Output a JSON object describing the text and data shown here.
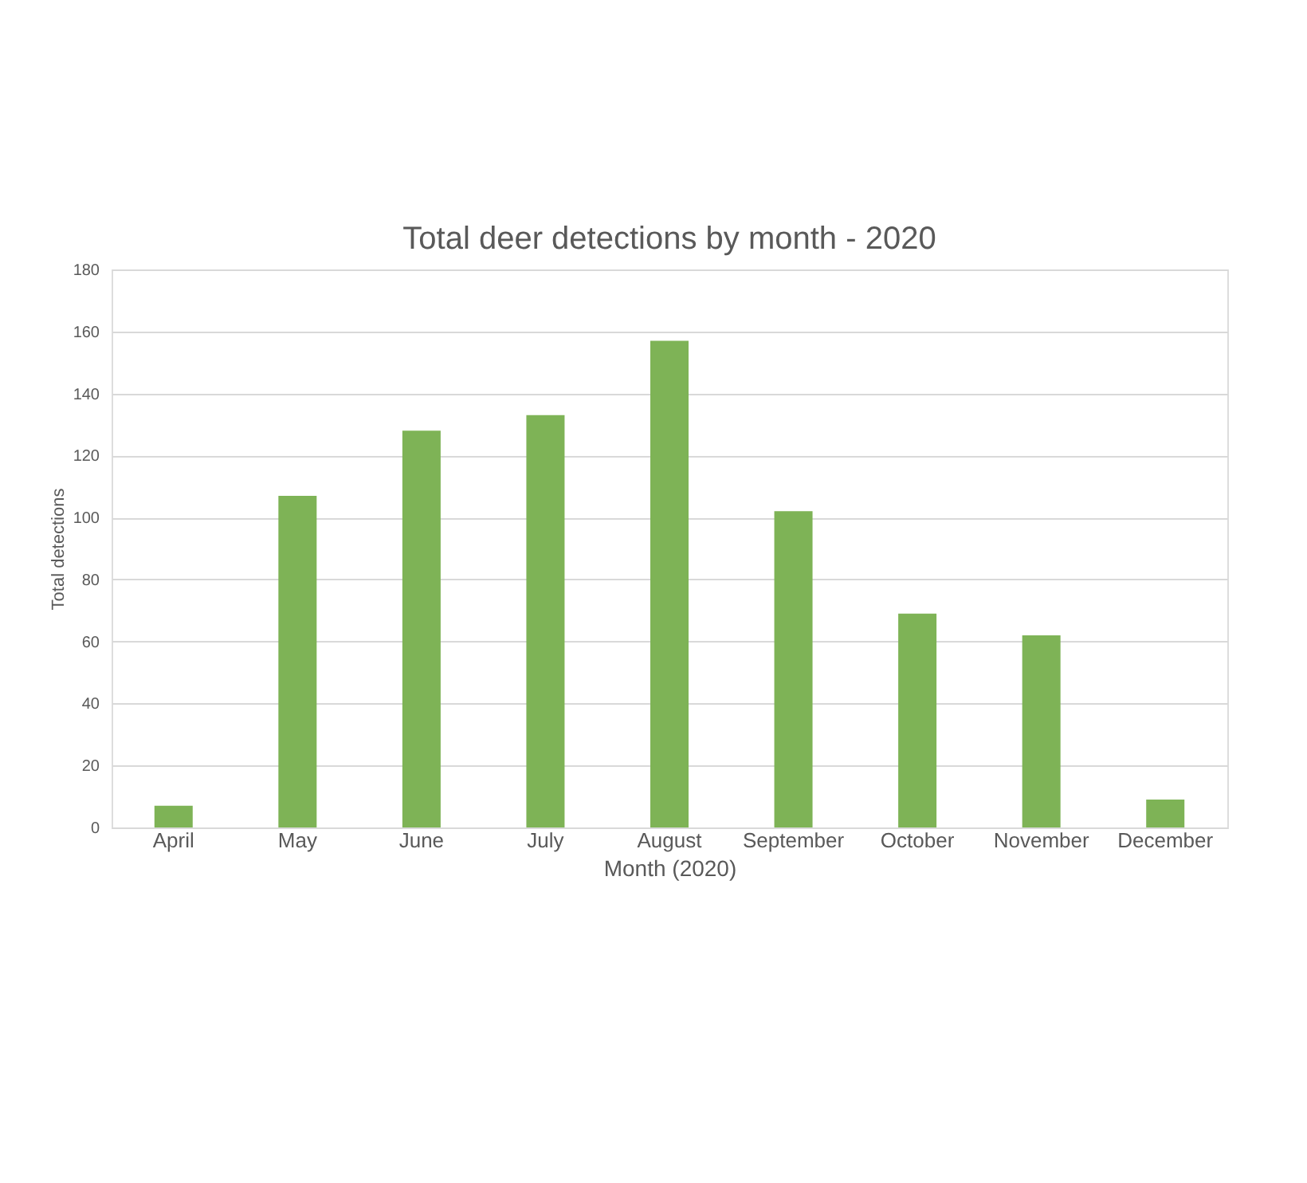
{
  "chart_data": {
    "type": "bar",
    "title": "Total deer detections by month - 2020",
    "xlabel": "Month (2020)",
    "ylabel": "Total detections",
    "categories": [
      "April",
      "May",
      "June",
      "July",
      "August",
      "September",
      "October",
      "November",
      "December"
    ],
    "values": [
      7,
      107,
      128,
      133,
      157,
      102,
      69,
      62,
      9
    ],
    "color": "#7eb356",
    "ylim": [
      0,
      180
    ],
    "yticks": [
      0,
      20,
      40,
      60,
      80,
      100,
      120,
      140,
      160,
      180
    ],
    "grid": "y"
  }
}
